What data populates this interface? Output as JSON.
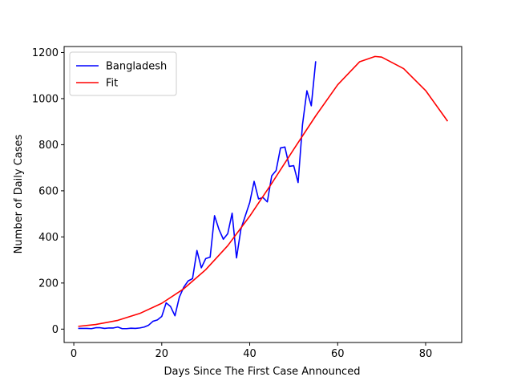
{
  "chart_data": {
    "type": "line",
    "title": "",
    "xlabel": "Days Since The First Case Announced",
    "ylabel": "Number of Daily Cases",
    "xlim": [
      -2.2,
      88.2
    ],
    "ylim": [
      -58,
      1226
    ],
    "xticks": [
      0,
      20,
      40,
      60,
      80
    ],
    "yticks": [
      0,
      200,
      400,
      600,
      800,
      1000,
      1200
    ],
    "grid": false,
    "legend_position": "top-left",
    "series": [
      {
        "name": "Bangladesh",
        "color": "#0000ff",
        "x": [
          1,
          2,
          3,
          4,
          5,
          6,
          7,
          8,
          9,
          10,
          11,
          12,
          13,
          14,
          15,
          16,
          17,
          18,
          19,
          20,
          21,
          22,
          23,
          24,
          25,
          26,
          27,
          28,
          29,
          30,
          31,
          32,
          33,
          34,
          35,
          36,
          37,
          38,
          39,
          40,
          41,
          42,
          43,
          44,
          45,
          46,
          47,
          48,
          49,
          50,
          51,
          52,
          53,
          54,
          55
        ],
        "values": [
          3,
          3,
          3,
          2,
          6,
          6,
          3,
          5,
          5,
          9,
          2,
          2,
          4,
          3,
          5,
          9,
          17,
          34,
          40,
          55,
          114,
          98,
          58,
          139,
          182,
          209,
          219,
          341,
          266,
          306,
          312,
          492,
          433,
          390,
          414,
          503,
          309,
          434,
          492,
          549,
          641,
          565,
          571,
          552,
          665,
          688,
          786,
          790,
          706,
          709,
          636,
          887,
          1034,
          969,
          1162
        ]
      },
      {
        "name": "Fit",
        "color": "#ff0000",
        "x": [
          1,
          5,
          10,
          15,
          20,
          25,
          30,
          35,
          40,
          45,
          50,
          55,
          60,
          65,
          68.5,
          70,
          75,
          80,
          85
        ],
        "values": [
          12,
          20,
          38,
          68,
          112,
          175,
          258,
          362,
          490,
          632,
          780,
          925,
          1060,
          1160,
          1183,
          1180,
          1130,
          1035,
          902
        ]
      }
    ]
  }
}
